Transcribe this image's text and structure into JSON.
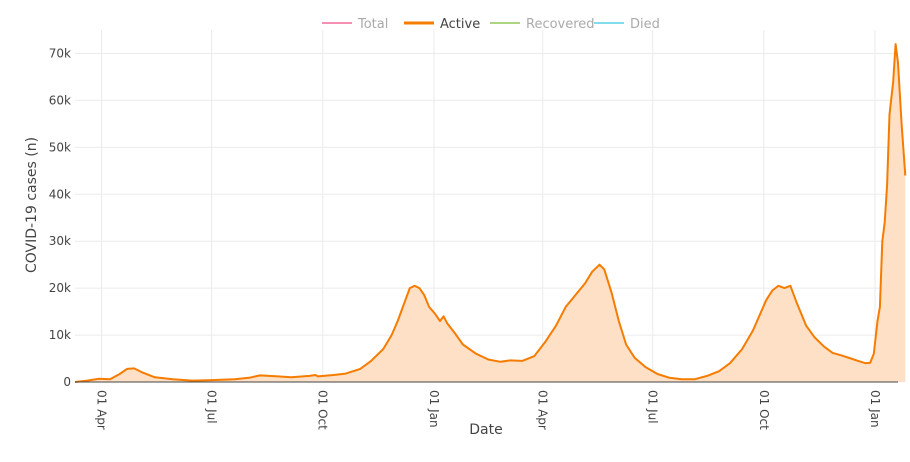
{
  "chart_data": {
    "type": "area",
    "xlabel": "Date",
    "ylabel": "COVID-19 cases (n)",
    "x_ticks": [
      "01 Apr",
      "01 Jul",
      "01 Oct",
      "01 Jan",
      "01 Apr",
      "01 Jul",
      "01 Oct",
      "01 Jan"
    ],
    "x_tick_dates": [
      "2020-04-01",
      "2020-07-01",
      "2020-10-01",
      "2021-01-01",
      "2021-04-01",
      "2021-07-01",
      "2021-10-01",
      "2022-01-01"
    ],
    "y_ticks": [
      "0",
      "10k",
      "20k",
      "30k",
      "40k",
      "50k",
      "60k",
      "70k"
    ],
    "y_tick_values": [
      0,
      10000,
      20000,
      30000,
      40000,
      50000,
      60000,
      70000
    ],
    "xlim": [
      "2020-03-10",
      "2022-01-20"
    ],
    "ylim": [
      0,
      75000
    ],
    "grid": true,
    "legend_position": "top-center",
    "legend": [
      {
        "name": "Total",
        "color": "#f48fb1",
        "visible": false
      },
      {
        "name": "Active",
        "color": "#f57c00",
        "visible": true
      },
      {
        "name": "Recovered",
        "color": "#aed581",
        "visible": false
      },
      {
        "name": "Died",
        "color": "#80deea",
        "visible": false
      }
    ],
    "series": [
      {
        "name": "Active",
        "color": "#f57c00",
        "fill": "#fde0c5",
        "points": [
          [
            "2020-03-10",
            0
          ],
          [
            "2020-03-20",
            300
          ],
          [
            "2020-03-30",
            700
          ],
          [
            "2020-04-08",
            600
          ],
          [
            "2020-04-16",
            1700
          ],
          [
            "2020-04-22",
            2800
          ],
          [
            "2020-04-28",
            2900
          ],
          [
            "2020-05-05",
            2000
          ],
          [
            "2020-05-15",
            1000
          ],
          [
            "2020-05-30",
            600
          ],
          [
            "2020-06-15",
            300
          ],
          [
            "2020-07-01",
            400
          ],
          [
            "2020-07-20",
            600
          ],
          [
            "2020-08-01",
            900
          ],
          [
            "2020-08-10",
            1400
          ],
          [
            "2020-08-25",
            1200
          ],
          [
            "2020-09-05",
            1000
          ],
          [
            "2020-09-20",
            1300
          ],
          [
            "2020-09-25",
            1500
          ],
          [
            "2020-09-27",
            1200
          ],
          [
            "2020-10-10",
            1500
          ],
          [
            "2020-10-20",
            1800
          ],
          [
            "2020-11-01",
            2800
          ],
          [
            "2020-11-10",
            4500
          ],
          [
            "2020-11-20",
            7000
          ],
          [
            "2020-11-27",
            10000
          ],
          [
            "2020-12-02",
            13000
          ],
          [
            "2020-12-07",
            16500
          ],
          [
            "2020-12-12",
            20000
          ],
          [
            "2020-12-16",
            20500
          ],
          [
            "2020-12-20",
            20000
          ],
          [
            "2020-12-24",
            18500
          ],
          [
            "2020-12-28",
            16000
          ],
          [
            "2021-01-02",
            14500
          ],
          [
            "2021-01-06",
            13000
          ],
          [
            "2021-01-09",
            14000
          ],
          [
            "2021-01-12",
            12500
          ],
          [
            "2021-01-18",
            10500
          ],
          [
            "2021-01-25",
            8000
          ],
          [
            "2021-02-05",
            6000
          ],
          [
            "2021-02-15",
            4800
          ],
          [
            "2021-02-25",
            4300
          ],
          [
            "2021-03-05",
            4600
          ],
          [
            "2021-03-15",
            4500
          ],
          [
            "2021-03-25",
            5500
          ],
          [
            "2021-04-03",
            8500
          ],
          [
            "2021-04-12",
            12000
          ],
          [
            "2021-04-20",
            16000
          ],
          [
            "2021-04-28",
            18500
          ],
          [
            "2021-05-06",
            21000
          ],
          [
            "2021-05-12",
            23500
          ],
          [
            "2021-05-18",
            25000
          ],
          [
            "2021-05-22",
            24000
          ],
          [
            "2021-05-28",
            19000
          ],
          [
            "2021-06-03",
            13000
          ],
          [
            "2021-06-09",
            8000
          ],
          [
            "2021-06-16",
            5200
          ],
          [
            "2021-06-25",
            3200
          ],
          [
            "2021-07-05",
            1700
          ],
          [
            "2021-07-15",
            900
          ],
          [
            "2021-07-25",
            600
          ],
          [
            "2021-08-05",
            600
          ],
          [
            "2021-08-15",
            1300
          ],
          [
            "2021-08-25",
            2300
          ],
          [
            "2021-09-03",
            4000
          ],
          [
            "2021-09-13",
            7000
          ],
          [
            "2021-09-22",
            11000
          ],
          [
            "2021-09-28",
            14500
          ],
          [
            "2021-10-03",
            17500
          ],
          [
            "2021-10-08",
            19500
          ],
          [
            "2021-10-13",
            20500
          ],
          [
            "2021-10-18",
            20000
          ],
          [
            "2021-10-23",
            20500
          ],
          [
            "2021-10-28",
            17000
          ],
          [
            "2021-11-05",
            12000
          ],
          [
            "2021-11-12",
            9500
          ],
          [
            "2021-11-20",
            7500
          ],
          [
            "2021-11-27",
            6200
          ],
          [
            "2021-12-05",
            5600
          ],
          [
            "2021-12-12",
            5000
          ],
          [
            "2021-12-18",
            4500
          ],
          [
            "2021-12-24",
            4000
          ],
          [
            "2021-12-28",
            4100
          ],
          [
            "2021-12-31",
            6000
          ],
          [
            "2022-01-03",
            13000
          ],
          [
            "2022-01-05",
            16000
          ],
          [
            "2022-01-07",
            30000
          ],
          [
            "2022-01-09",
            34000
          ],
          [
            "2022-01-11",
            42000
          ],
          [
            "2022-01-13",
            57000
          ],
          [
            "2022-01-16",
            64000
          ],
          [
            "2022-01-18",
            72000
          ],
          [
            "2022-01-20",
            68000
          ],
          [
            "2022-01-23",
            55000
          ],
          [
            "2022-01-26",
            44000
          ]
        ]
      }
    ]
  }
}
